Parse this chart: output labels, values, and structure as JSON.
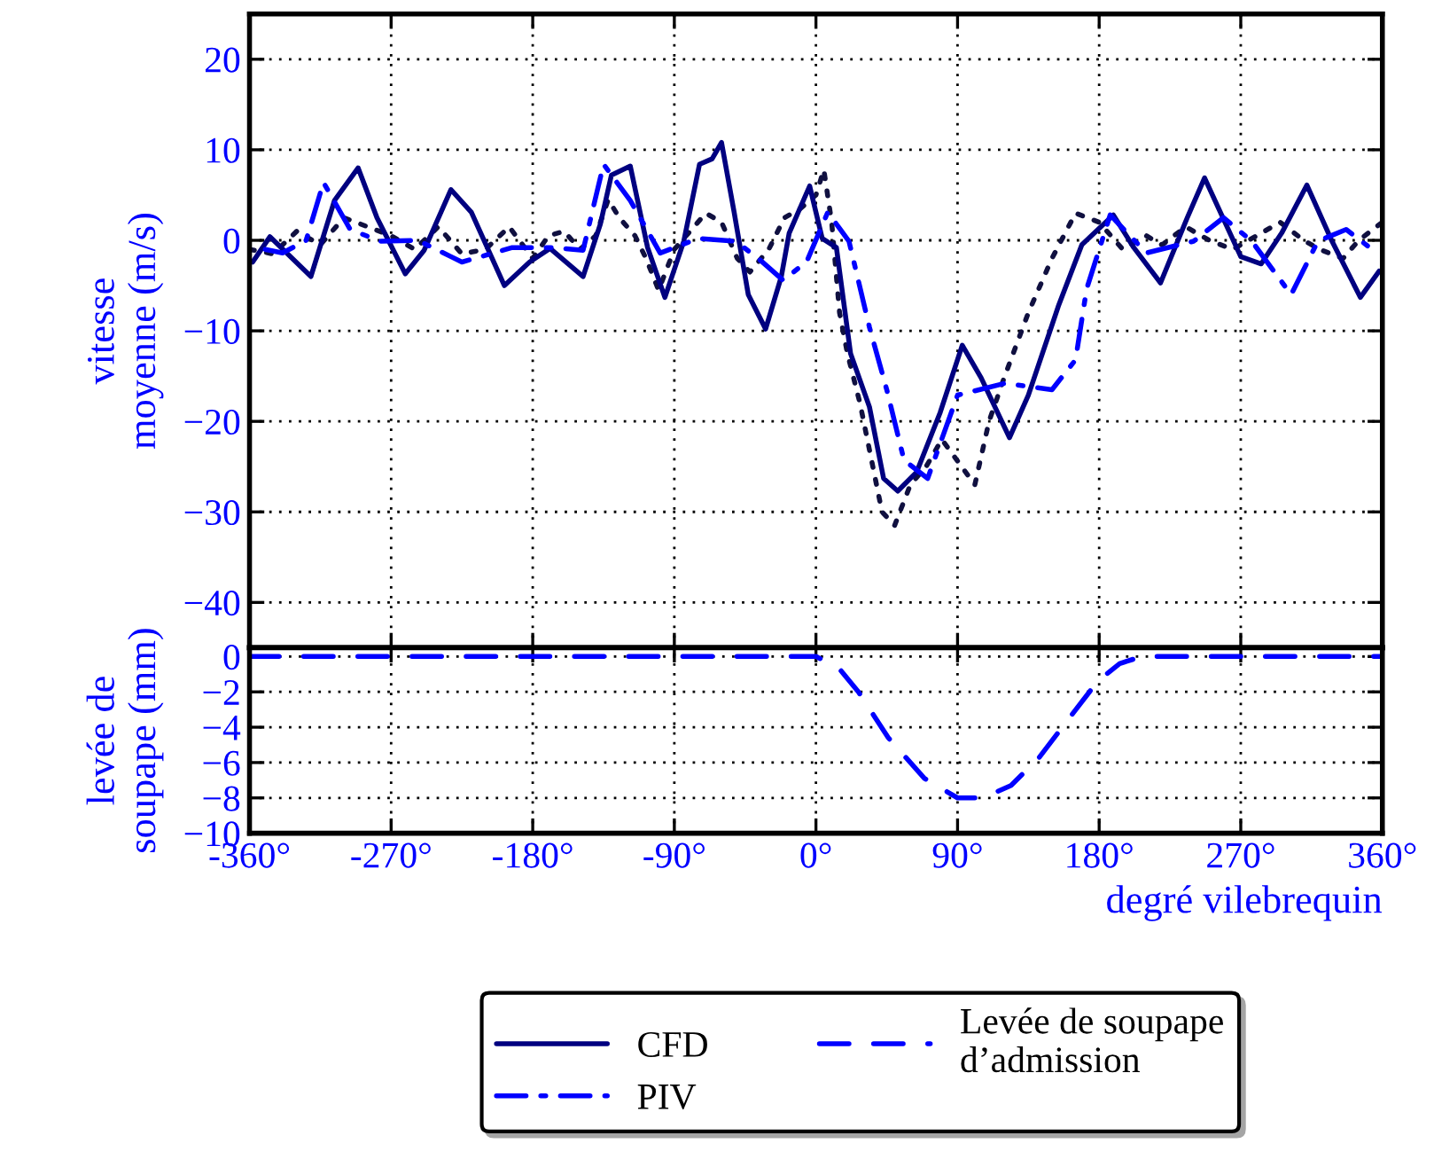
{
  "chart_data": [
    {
      "type": "line",
      "ylabel": "vitesse\nmoyenne (m/s)",
      "xlim": [
        -360,
        360
      ],
      "ylim": [
        -45,
        25
      ],
      "yticks": [
        {
          "value": -40,
          "label": "−40"
        },
        {
          "value": -30,
          "label": "−30"
        },
        {
          "value": -20,
          "label": "−20"
        },
        {
          "value": -10,
          "label": "−10"
        },
        0,
        10,
        20
      ],
      "xticks": [
        -360,
        -270,
        -180,
        -90,
        0,
        90,
        180,
        270,
        360
      ],
      "tick_labels": "y",
      "grid": true,
      "legend": "bottom",
      "marker": "none",
      "series": [
        {
          "color": "#101040",
          "line_style": "dotted",
          "x": [
            -360,
            -345,
            -330,
            -315,
            -300,
            -285,
            -270,
            -255,
            -240,
            -225,
            -210,
            -195,
            -180,
            -170,
            -160,
            -150,
            -140,
            -132,
            -125,
            -115,
            -108,
            -100,
            -90,
            -80,
            -70,
            -60,
            -50,
            -42,
            -30,
            -20,
            -10,
            0,
            5,
            10,
            15,
            20,
            28,
            35,
            42,
            50,
            60,
            70,
            80,
            101,
            110,
            120,
            135,
            150,
            165,
            180,
            195,
            210,
            220,
            235,
            250,
            265,
            280,
            295,
            310,
            320,
            335,
            345,
            360
          ],
          "values": [
            -1,
            -1.5,
            1,
            -0.5,
            2.5,
            1.5,
            0.5,
            -1,
            1.5,
            -1.5,
            -1,
            1.5,
            -2,
            0.5,
            1,
            -1,
            0.5,
            4.5,
            2.5,
            0.5,
            -2,
            -5.5,
            -1,
            1,
            3,
            2,
            -2,
            -3.5,
            -1,
            2.5,
            3.5,
            5,
            7.8,
            2,
            -8,
            -12.5,
            -18,
            -24,
            -30,
            -31.5,
            -27,
            -25,
            -22,
            -27,
            -20,
            -15,
            -8,
            -2,
            3,
            2,
            -1,
            0.5,
            -0.5,
            1.5,
            0,
            -1,
            0.5,
            2,
            0,
            -1,
            -2,
            0,
            2
          ]
        },
        {
          "name": "CFD",
          "color": "#000080",
          "line_style": "solid",
          "x": [
            -358,
            -347,
            -321,
            -306,
            -291,
            -279,
            -261,
            -249,
            -232,
            -219,
            -198,
            -182,
            -169,
            -148,
            -137,
            -130,
            -118,
            -107,
            -96,
            -84,
            -74,
            -66,
            -60,
            -52,
            -43,
            -32,
            -22,
            -17,
            -4,
            4,
            13,
            22,
            34,
            43,
            52,
            64,
            79,
            93,
            105,
            123,
            135,
            154,
            169,
            189,
            202,
            219,
            236,
            247,
            270,
            283,
            296,
            312,
            328,
            346,
            358
          ],
          "values": [
            -2.4,
            0.4,
            -4,
            4.4,
            8,
            2.5,
            -3.7,
            -1.1,
            5.6,
            3.1,
            -5,
            -2.4,
            -0.9,
            -4,
            1.8,
            7.2,
            8.2,
            -0.8,
            -6.3,
            -0.1,
            8.4,
            9,
            10.8,
            3.1,
            -6,
            -9.8,
            -4,
            0.8,
            6,
            0.2,
            -0.8,
            -12.5,
            -18.4,
            -26.3,
            -27.7,
            -25.6,
            -19,
            -11.6,
            -15.2,
            -21.8,
            -17.1,
            -7.3,
            -0.5,
            2.8,
            -0.8,
            -4.7,
            2.5,
            6.9,
            -1.8,
            -2.6,
            0.8,
            6.1,
            -0.1,
            -6.3,
            -3.4
          ]
        },
        {
          "name": "PIV",
          "color": "#0000ff",
          "line_style": "dashdot",
          "x": [
            -350,
            -339,
            -324,
            -313,
            -296,
            -277,
            -253,
            -225,
            -193,
            -167,
            -148,
            -135,
            -118,
            -99,
            -75,
            -51,
            -36,
            -21,
            -6,
            7.5,
            21,
            34,
            45,
            56,
            71,
            90,
            120,
            150,
            165,
            172,
            187,
            210,
            240,
            259,
            277,
            302,
            319,
            337,
            352
          ],
          "values": [
            -1,
            -1.4,
            0,
            6.4,
            1.2,
            -0.1,
            0,
            -2.4,
            -0.8,
            -0.8,
            -1.1,
            8.4,
            4.4,
            -1.4,
            0.2,
            -0.1,
            -2.1,
            -4.4,
            -2.4,
            3.1,
            -0.1,
            -9.6,
            -16.5,
            -24.3,
            -26.3,
            -17.1,
            -15.8,
            -16.5,
            -13.2,
            -5.4,
            2.8,
            -1.4,
            -0.1,
            2.5,
            -0.1,
            -6,
            -0.1,
            1.2,
            -0.8
          ]
        }
      ]
    },
    {
      "type": "line",
      "ylabel": "levée de\nsoupape (mm)",
      "xlabel": "degré vilebrequin",
      "xlim": [
        -360,
        360
      ],
      "ylim": [
        -10,
        0.5
      ],
      "yticks": [
        0,
        {
          "value": -2,
          "label": "−2"
        },
        {
          "value": -4,
          "label": "−4"
        },
        {
          "value": -6,
          "label": "−6"
        },
        {
          "value": -8,
          "label": "−8"
        },
        {
          "value": -10,
          "label": "−10"
        }
      ],
      "xticks": [
        {
          "value": -360,
          "label": "-360°"
        },
        {
          "value": -270,
          "label": "-270°"
        },
        {
          "value": -180,
          "label": "-180°"
        },
        {
          "value": -90,
          "label": "-90°"
        },
        {
          "value": 0,
          "label": "0°"
        },
        {
          "value": 90,
          "label": "90°"
        },
        {
          "value": 180,
          "label": "180°"
        },
        {
          "value": 270,
          "label": "270°"
        },
        {
          "value": 360,
          "label": "360°"
        }
      ],
      "grid": true,
      "legend": "bottom",
      "marker": "none",
      "series": [
        {
          "name": "Levée de soupape\nd’admission",
          "color": "#0000ff",
          "line_style": "dashed",
          "x": [
            -360,
            0,
            14,
            27,
            46,
            69,
            90,
            106,
            124,
            142,
            160,
            179,
            193,
            207,
            360
          ],
          "values": [
            0,
            0,
            -0.6,
            -2,
            -4.6,
            -6.9,
            -8,
            -8,
            -7.3,
            -5.7,
            -3.6,
            -1.4,
            -0.4,
            0,
            0
          ]
        }
      ]
    }
  ]
}
